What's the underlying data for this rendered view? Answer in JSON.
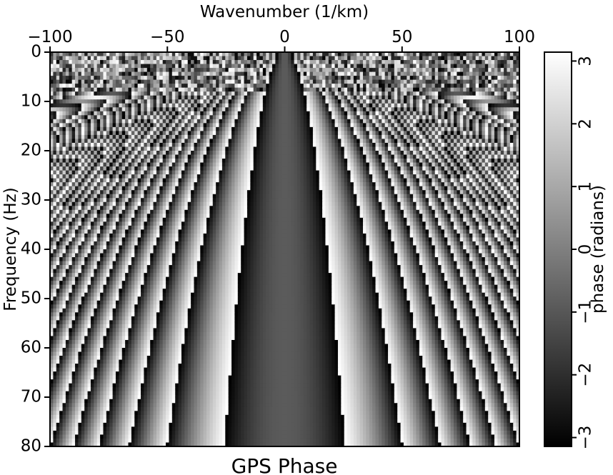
{
  "chart_data": {
    "type": "heatmap",
    "title": "GPS Phase",
    "xlabel": "Wavenumber (1/km)",
    "ylabel": "Frequency (Hz)",
    "xlim": [
      -100,
      100
    ],
    "ylim": [
      0,
      80
    ],
    "y_inverted": true,
    "x_axis_position": "top",
    "x_ticks": [
      -100,
      -50,
      0,
      50,
      100
    ],
    "x_tick_labels": [
      "−100",
      "−50",
      "0",
      "50",
      "100"
    ],
    "y_ticks": [
      0,
      10,
      20,
      30,
      40,
      50,
      60,
      70,
      80
    ],
    "y_tick_labels": [
      "0",
      "10",
      "20",
      "30",
      "40",
      "50",
      "60",
      "70",
      "80"
    ],
    "colorbar": {
      "label": "phase (radians)",
      "range": [
        -3.14159,
        3.14159
      ],
      "ticks": [
        -3,
        -2,
        -1,
        0,
        1,
        2,
        3
      ],
      "tick_labels": [
        "−3",
        "−2",
        "−1",
        "0",
        "1",
        "2",
        "3"
      ],
      "colormap": "grayscale",
      "color_min": "#000000",
      "color_max": "#ffffff",
      "position": "right"
    },
    "grid": false
  }
}
